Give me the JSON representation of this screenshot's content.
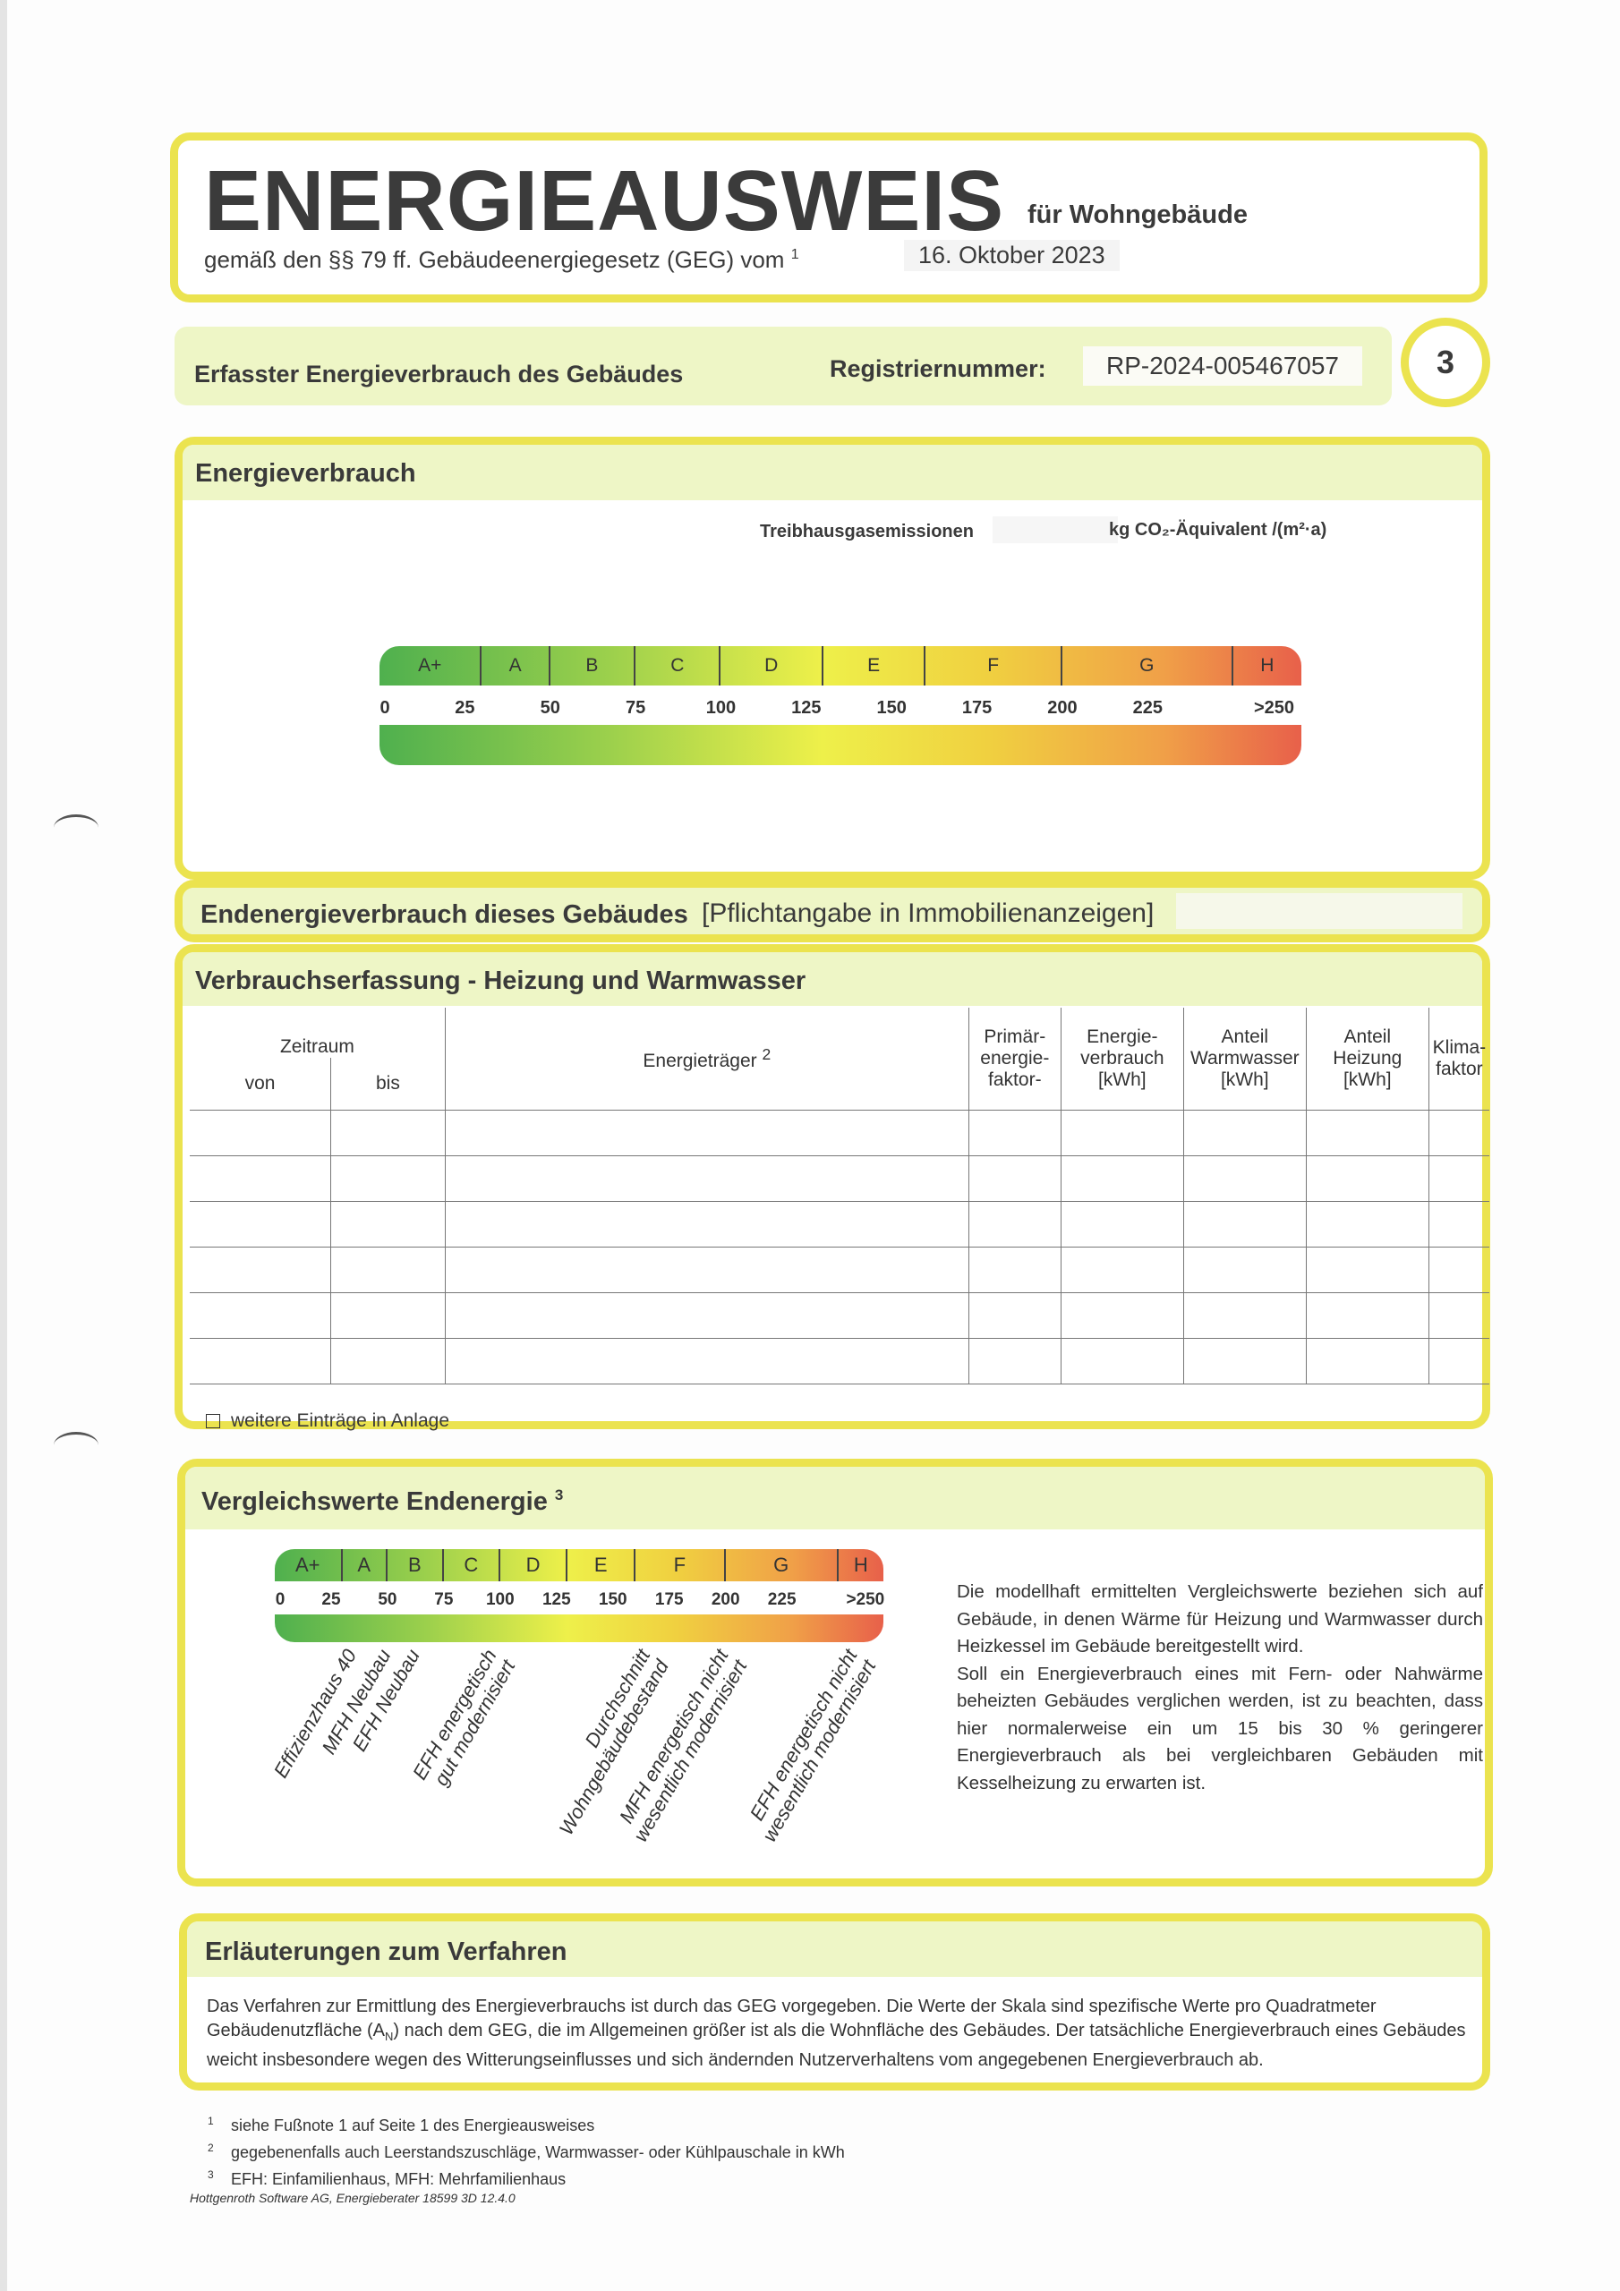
{
  "header": {
    "title": "ENERGIEAUSWEIS",
    "title_suffix": "für Wohngebäude",
    "legal_basis": "gemäß den §§ 79 ff. Gebäudeenergiegesetz (GEG) vom",
    "legal_footnote": "1",
    "date": "16. Oktober 2023"
  },
  "subheader": {
    "section": "Erfasster Energieverbrauch des Gebäudes",
    "reg_label": "Registriernummer:",
    "reg_number": "RP-2024-005467057",
    "page_number": "3"
  },
  "energieverbrauch": {
    "title": "Energieverbrauch",
    "ghg_label": "Treibhausgasemissionen",
    "ghg_unit": "kg CO₂-Äquivalent /(m²·a)"
  },
  "scale": {
    "classes": [
      "A+",
      "A",
      "B",
      "C",
      "D",
      "E",
      "F",
      "G",
      "H"
    ],
    "class_bounds": [
      0,
      30,
      50,
      75,
      100,
      130,
      160,
      200,
      250,
      270
    ],
    "ticks": [
      "0",
      "25",
      "50",
      "75",
      "100",
      "125",
      "150",
      "175",
      "200",
      "225",
      ">250"
    ],
    "tick_values": [
      0,
      25,
      50,
      75,
      100,
      125,
      150,
      175,
      200,
      225,
      262
    ]
  },
  "endenergie": {
    "title": "Endenergieverbrauch dieses Gebäudes",
    "note": "[Pflichtangabe in Immobilienanzeigen]"
  },
  "verbrauch": {
    "title": "Verbrauchserfassung - Heizung und Warmwasser",
    "columns": {
      "zeitraum": "Zeitraum",
      "von": "von",
      "bis": "bis",
      "traeger": "Energieträger",
      "traeger_fn": "2",
      "primaer": "Primär-\nenergie-\nfaktor-",
      "verbrauch": "Energie-\nverbrauch\n[kWh]",
      "warmwasser": "Anteil\nWarmwasser\n[kWh]",
      "heizung": "Anteil\nHeizung\n[kWh]",
      "klima": "Klima-\nfaktor"
    },
    "rows": [
      [
        "",
        "",
        "",
        "",
        "",
        "",
        "",
        ""
      ],
      [
        "",
        "",
        "",
        "",
        "",
        "",
        "",
        ""
      ],
      [
        "",
        "",
        "",
        "",
        "",
        "",
        "",
        ""
      ],
      [
        "",
        "",
        "",
        "",
        "",
        "",
        "",
        ""
      ],
      [
        "",
        "",
        "",
        "",
        "",
        "",
        "",
        ""
      ],
      [
        "",
        "",
        "",
        "",
        "",
        "",
        "",
        ""
      ]
    ],
    "more_entries_checked": false,
    "more_entries_label": "weitere Einträge in Anlage"
  },
  "vergleich": {
    "title": "Vergleichswerte Endenergie",
    "title_fn": "3",
    "references": [
      {
        "label": "Effizienzhaus 40",
        "value": 30
      },
      {
        "label": "MFH Neubau",
        "value": 45
      },
      {
        "label": "EFH Neubau",
        "value": 58
      },
      {
        "label": "EFH energetisch\ngut modernisiert",
        "value": 92
      },
      {
        "label": "Durchschnitt\nWohngebäudebestand",
        "value": 160
      },
      {
        "label": "MFH energetisch nicht\nwesentlich modernisiert",
        "value": 195
      },
      {
        "label": "EFH energetisch nicht\nwesentlich modernisiert",
        "value": 252
      }
    ],
    "text": "Die modellhaft ermittelten Vergleichswerte beziehen sich auf Gebäude, in denen Wärme für Heizung und Warmwasser durch Heizkessel im Gebäude bereitgestellt wird.\nSoll ein Energieverbrauch eines mit Fern- oder Nahwärme beheizten Gebäudes verglichen werden, ist zu beachten, dass hier normalerweise ein um 15 bis 30 % geringerer Energieverbrauch als bei vergleichbaren Gebäuden mit Kesselheizung zu erwarten ist."
  },
  "erlaeuterung": {
    "title": "Erläuterungen zum Verfahren",
    "text_1": "Das Verfahren zur Ermittlung des Energieverbrauchs ist durch das GEG vorgegeben. Die Werte der Skala sind spezifische Werte pro Quadratmeter Gebäudenutzfläche (A",
    "text_sub": "N",
    "text_2": ") nach dem GEG, die im Allgemeinen größer ist als die Wohnfläche des Gebäudes. Der tatsächliche Energieverbrauch eines Gebäudes weicht insbesondere wegen des Witterungseinflusses und sich ändernden Nutzerverhaltens vom angegebenen Energieverbrauch ab."
  },
  "footnotes": [
    {
      "n": "1",
      "text": "siehe Fußnote 1 auf Seite 1 des Energieausweises"
    },
    {
      "n": "2",
      "text": "gegebenenfalls auch Leerstandszuschläge, Warmwasser- oder Kühlpauschale in kWh"
    },
    {
      "n": "3",
      "text": "EFH: Einfamilienhaus, MFH: Mehrfamilienhaus"
    }
  ],
  "software": "Hottgenroth Software AG, Energieberater 18599 3D 12.4.0",
  "colors": {
    "frame": "#ebe34f",
    "band": "#eef6c6",
    "scale_green": "#4fb04e",
    "scale_yellow": "#eef04a",
    "scale_red": "#e8604a"
  }
}
